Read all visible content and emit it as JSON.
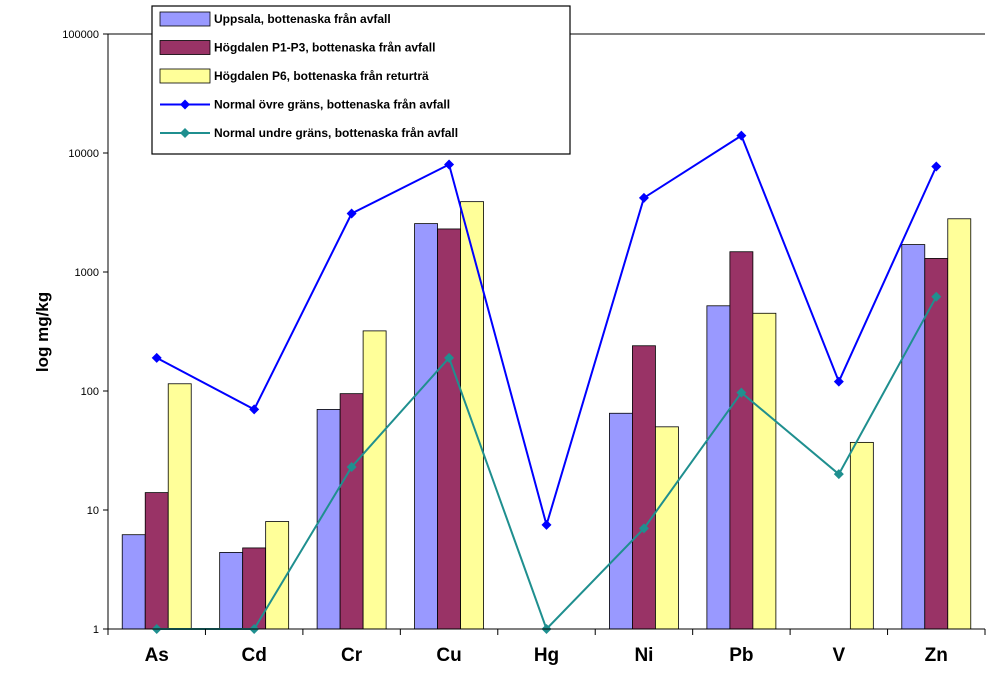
{
  "chart_data": {
    "type": "bar",
    "scale": "log",
    "ylabel": "log mg/kg",
    "xlabel": "",
    "ylim": [
      1,
      100000
    ],
    "yticks": [
      "1",
      "10",
      "100",
      "1000",
      "10000",
      "100000"
    ],
    "categories": [
      "As",
      "Cd",
      "Cr",
      "Cu",
      "Hg",
      "Ni",
      "Pb",
      "V",
      "Zn"
    ],
    "grid": "top line only",
    "legend_position": "top-left",
    "series": [
      {
        "name": "Uppsala, bottenaska från avfall",
        "kind": "bar",
        "color": "#9999ff",
        "values": [
          6.2,
          4.4,
          70,
          2550,
          null,
          65,
          520,
          null,
          1700
        ]
      },
      {
        "name": "Högdalen P1-P3, bottenaska från avfall",
        "kind": "bar",
        "color": "#993366",
        "values": [
          14,
          4.8,
          95,
          2300,
          null,
          240,
          1480,
          null,
          1300
        ]
      },
      {
        "name": "Högdalen P6, bottenaska från returträ",
        "kind": "bar",
        "color": "#ffff99",
        "values": [
          115,
          8,
          320,
          3900,
          null,
          50,
          450,
          37,
          2800
        ]
      },
      {
        "name": "Normal övre gräns, bottenaska från avfall",
        "kind": "line",
        "color": "#0000ff",
        "values": [
          190,
          70,
          3100,
          8000,
          7.5,
          4200,
          14000,
          120,
          7700
        ]
      },
      {
        "name": "Normal undre gräns, bottenaska från avfall",
        "kind": "line",
        "color": "#1f8f8f",
        "values": [
          1,
          1,
          23,
          190,
          1,
          7,
          97,
          20,
          620
        ]
      }
    ]
  }
}
